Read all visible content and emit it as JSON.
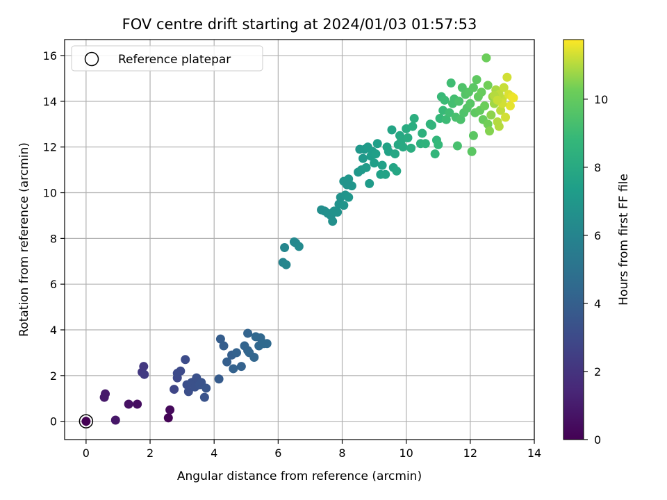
{
  "chart_data": {
    "type": "scatter",
    "title": "FOV centre drift starting at 2024/01/03 01:57:53",
    "xlabel": "Angular distance from reference (arcmin)",
    "ylabel": "Rotation from reference (arcmin)",
    "xlim": [
      -0.67,
      14.0
    ],
    "ylim": [
      -0.8,
      16.7
    ],
    "xticks": [
      0,
      2,
      4,
      6,
      8,
      10,
      12,
      14
    ],
    "yticks": [
      0,
      2,
      4,
      6,
      8,
      10,
      12,
      14,
      16
    ],
    "grid": true,
    "legend": {
      "placement": "top-left",
      "entries": [
        "Reference platepar"
      ]
    },
    "reference_point": {
      "x": 0,
      "y": 0
    },
    "colorbar": {
      "label": "Hours from first FF file",
      "colormap": "viridis",
      "range": [
        0,
        11.75
      ],
      "ticks": [
        0,
        2,
        4,
        6,
        8,
        10
      ]
    },
    "points": [
      [
        0.0,
        0.0,
        0.0
      ],
      [
        0.57,
        1.05,
        0.9
      ],
      [
        0.6,
        1.2,
        0.9
      ],
      [
        0.92,
        0.05,
        0.8
      ],
      [
        1.33,
        0.75,
        0.6
      ],
      [
        1.6,
        0.75,
        0.5
      ],
      [
        2.57,
        0.15,
        0.1
      ],
      [
        2.62,
        0.5,
        0.3
      ],
      [
        1.75,
        2.15,
        2.2
      ],
      [
        1.8,
        2.4,
        2.2
      ],
      [
        1.82,
        2.05,
        2.3
      ],
      [
        2.75,
        1.4,
        2.8
      ],
      [
        2.85,
        1.9,
        2.9
      ],
      [
        2.85,
        2.1,
        3.0
      ],
      [
        2.95,
        2.2,
        3.0
      ],
      [
        3.1,
        2.7,
        3.1
      ],
      [
        3.15,
        1.6,
        3.2
      ],
      [
        3.2,
        1.3,
        3.2
      ],
      [
        3.3,
        1.7,
        3.3
      ],
      [
        3.4,
        1.5,
        3.3
      ],
      [
        3.45,
        1.9,
        3.3
      ],
      [
        3.55,
        1.6,
        3.4
      ],
      [
        3.6,
        1.7,
        3.4
      ],
      [
        3.7,
        1.05,
        3.4
      ],
      [
        3.75,
        1.45,
        3.5
      ],
      [
        4.15,
        1.85,
        3.8
      ],
      [
        4.2,
        3.6,
        3.9
      ],
      [
        4.3,
        3.3,
        3.9
      ],
      [
        4.4,
        2.6,
        4.0
      ],
      [
        4.55,
        2.9,
        4.0
      ],
      [
        4.6,
        2.3,
        4.1
      ],
      [
        4.7,
        3.0,
        4.1
      ],
      [
        4.85,
        2.4,
        4.1
      ],
      [
        4.95,
        3.3,
        4.2
      ],
      [
        5.05,
        3.85,
        4.2
      ],
      [
        5.05,
        3.1,
        4.2
      ],
      [
        5.1,
        3.0,
        4.3
      ],
      [
        5.25,
        2.8,
        4.3
      ],
      [
        5.3,
        3.7,
        4.4
      ],
      [
        5.4,
        3.3,
        4.4
      ],
      [
        5.45,
        3.65,
        4.4
      ],
      [
        5.55,
        3.4,
        4.5
      ],
      [
        5.65,
        3.4,
        4.5
      ],
      [
        6.15,
        6.95,
        6.0
      ],
      [
        6.2,
        7.6,
        6.1
      ],
      [
        6.25,
        6.85,
        6.1
      ],
      [
        6.5,
        7.85,
        6.2
      ],
      [
        6.55,
        7.8,
        6.2
      ],
      [
        6.65,
        7.65,
        6.3
      ],
      [
        7.35,
        9.25,
        6.5
      ],
      [
        7.45,
        9.2,
        6.5
      ],
      [
        7.55,
        9.1,
        6.6
      ],
      [
        7.65,
        9.0,
        6.6
      ],
      [
        7.7,
        8.75,
        6.6
      ],
      [
        7.75,
        9.2,
        6.7
      ],
      [
        7.85,
        9.15,
        6.7
      ],
      [
        7.9,
        9.5,
        6.7
      ],
      [
        7.95,
        9.8,
        6.7
      ],
      [
        8.05,
        9.45,
        6.8
      ],
      [
        8.05,
        10.5,
        6.8
      ],
      [
        8.1,
        9.9,
        6.8
      ],
      [
        8.15,
        10.35,
        6.8
      ],
      [
        8.2,
        10.6,
        6.9
      ],
      [
        8.2,
        9.8,
        6.9
      ],
      [
        8.3,
        10.3,
        6.9
      ],
      [
        8.15,
        10.35,
        6.8
      ],
      [
        8.5,
        10.9,
        7.0
      ],
      [
        8.55,
        11.9,
        7.0
      ],
      [
        8.6,
        11.0,
        7.1
      ],
      [
        8.65,
        11.5,
        7.1
      ],
      [
        8.7,
        11.9,
        7.1
      ],
      [
        8.75,
        11.1,
        7.2
      ],
      [
        8.8,
        12.0,
        7.2
      ],
      [
        8.85,
        10.4,
        7.2
      ],
      [
        8.9,
        11.6,
        7.3
      ],
      [
        8.95,
        11.8,
        7.3
      ],
      [
        9.0,
        11.3,
        7.4
      ],
      [
        9.05,
        11.7,
        7.4
      ],
      [
        9.1,
        12.15,
        7.4
      ],
      [
        9.2,
        10.8,
        7.5
      ],
      [
        9.25,
        11.2,
        7.5
      ],
      [
        9.35,
        10.8,
        7.6
      ],
      [
        9.4,
        12.0,
        7.6
      ],
      [
        9.45,
        11.8,
        7.6
      ],
      [
        9.55,
        12.75,
        7.7
      ],
      [
        9.6,
        11.1,
        7.7
      ],
      [
        9.65,
        11.7,
        7.8
      ],
      [
        9.7,
        10.95,
        7.8
      ],
      [
        9.75,
        12.1,
        7.9
      ],
      [
        9.8,
        12.5,
        7.9
      ],
      [
        9.85,
        12.3,
        8.0
      ],
      [
        9.9,
        12.0,
        8.0
      ],
      [
        10.0,
        12.8,
        8.1
      ],
      [
        10.05,
        12.4,
        8.1
      ],
      [
        10.15,
        11.95,
        8.2
      ],
      [
        10.2,
        12.9,
        8.2
      ],
      [
        10.25,
        13.25,
        8.3
      ],
      [
        10.45,
        12.15,
        8.4
      ],
      [
        10.5,
        12.6,
        8.4
      ],
      [
        10.6,
        12.15,
        8.5
      ],
      [
        10.75,
        13.0,
        8.6
      ],
      [
        10.8,
        12.95,
        8.6
      ],
      [
        10.9,
        11.7,
        8.7
      ],
      [
        10.95,
        12.3,
        8.7
      ],
      [
        11.0,
        12.1,
        8.8
      ],
      [
        11.05,
        13.25,
        8.8
      ],
      [
        11.1,
        14.2,
        8.9
      ],
      [
        11.15,
        13.6,
        8.9
      ],
      [
        11.2,
        14.05,
        9.0
      ],
      [
        11.25,
        13.2,
        9.0
      ],
      [
        11.35,
        13.5,
        9.1
      ],
      [
        11.4,
        14.8,
        9.1
      ],
      [
        11.45,
        13.9,
        9.2
      ],
      [
        11.5,
        14.1,
        9.2
      ],
      [
        11.55,
        13.3,
        9.3
      ],
      [
        11.6,
        12.05,
        9.3
      ],
      [
        11.65,
        14.0,
        9.4
      ],
      [
        11.7,
        13.2,
        9.4
      ],
      [
        11.75,
        14.6,
        9.5
      ],
      [
        11.8,
        13.5,
        9.5
      ],
      [
        11.85,
        14.3,
        9.6
      ],
      [
        11.9,
        13.7,
        9.6
      ],
      [
        11.95,
        14.4,
        9.7
      ],
      [
        12.0,
        13.9,
        9.7
      ],
      [
        12.05,
        11.8,
        9.8
      ],
      [
        12.1,
        14.6,
        9.8
      ],
      [
        12.1,
        12.5,
        9.8
      ],
      [
        12.15,
        13.5,
        9.9
      ],
      [
        12.2,
        14.95,
        9.9
      ],
      [
        12.25,
        14.2,
        10.0
      ],
      [
        12.3,
        13.6,
        10.0
      ],
      [
        12.35,
        14.4,
        10.1
      ],
      [
        12.4,
        13.2,
        10.1
      ],
      [
        12.45,
        13.8,
        10.2
      ],
      [
        12.5,
        15.9,
        10.2
      ],
      [
        12.55,
        14.7,
        10.3
      ],
      [
        12.55,
        13.0,
        10.3
      ],
      [
        12.6,
        12.7,
        10.5
      ],
      [
        12.65,
        13.4,
        10.6
      ],
      [
        12.7,
        14.2,
        10.7
      ],
      [
        12.75,
        13.9,
        10.8
      ],
      [
        12.8,
        14.5,
        10.9
      ],
      [
        12.85,
        13.1,
        11.0
      ],
      [
        12.9,
        12.9,
        11.0
      ],
      [
        12.95,
        13.6,
        11.1
      ],
      [
        13.0,
        14.1,
        11.2
      ],
      [
        13.05,
        14.6,
        11.2
      ],
      [
        13.1,
        13.3,
        11.3
      ],
      [
        13.15,
        15.05,
        11.3
      ],
      [
        13.2,
        14.3,
        11.4
      ],
      [
        13.25,
        13.8,
        11.5
      ],
      [
        13.3,
        14.2,
        11.5
      ],
      [
        13.35,
        14.15,
        11.6
      ],
      [
        12.9,
        14.3,
        11.1
      ],
      [
        13.0,
        13.9,
        11.3
      ],
      [
        12.75,
        14.25,
        11.0
      ],
      [
        12.85,
        14.05,
        11.2
      ]
    ]
  }
}
